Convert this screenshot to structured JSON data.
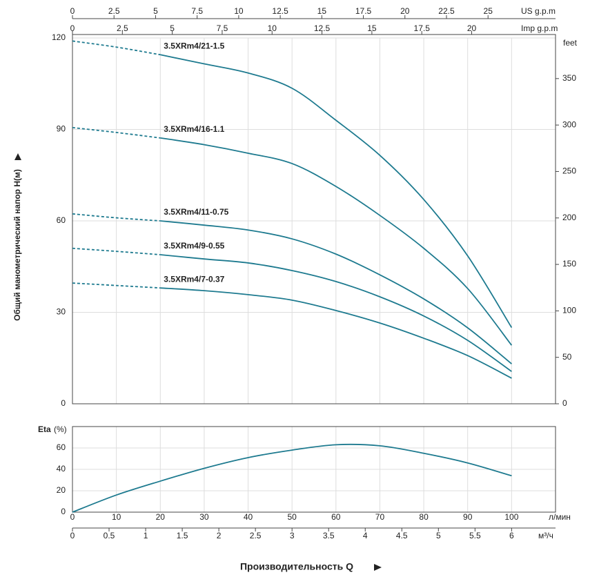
{
  "chart_data": [
    {
      "type": "line",
      "y_label": "Общий манометрический напор H(м)",
      "grid": true,
      "color": "#1d7a8f",
      "dashed_below_x": 20,
      "x": [
        0,
        10,
        20,
        30,
        40,
        50,
        60,
        70,
        80,
        90,
        100
      ],
      "xlim": [
        0,
        110
      ],
      "ylim": [
        0,
        120
      ],
      "yticks": [
        0,
        30,
        60,
        90,
        120
      ],
      "y2_label": "feet",
      "y2lim": [
        0,
        393.7
      ],
      "y2ticks": [
        0,
        50,
        100,
        150,
        200,
        250,
        300,
        350
      ],
      "top_axes": [
        {
          "label": "US g.p.m",
          "lim": [
            0,
            29.06
          ],
          "ticks": [
            0,
            2.5,
            5,
            7.5,
            10,
            12.5,
            15,
            17.5,
            20,
            22.5,
            25
          ]
        },
        {
          "label": "Imp g.p.m",
          "lim": [
            0,
            24.2
          ],
          "ticks": [
            0,
            2.5,
            5,
            7.5,
            10,
            12.5,
            15,
            17.5,
            20
          ]
        }
      ],
      "series": [
        {
          "name": "3.5XRm4/21-1.5",
          "values": [
            119,
            117,
            114.5,
            111.5,
            108.5,
            103.5,
            93,
            81.5,
            67,
            48.5,
            25
          ]
        },
        {
          "name": "3.5XRm4/16-1.1",
          "values": [
            90.6,
            89,
            87.2,
            85,
            82.2,
            78.8,
            71.3,
            61.8,
            51,
            37.8,
            19.2
          ]
        },
        {
          "name": "3.5XRm4/11-0.75",
          "values": [
            62.3,
            61,
            60,
            58.6,
            57,
            54.1,
            49.1,
            42.3,
            34.4,
            24.9,
            13.1
          ]
        },
        {
          "name": "3.5XRm4/9-0.55",
          "values": [
            51,
            50,
            48.9,
            47.5,
            46.2,
            43.7,
            40.1,
            35.1,
            28.8,
            20.8,
            10.6
          ]
        },
        {
          "name": "3.5XRm4/7-0.37",
          "values": [
            39.6,
            38.8,
            38,
            37.1,
            35.8,
            34,
            30.6,
            26.5,
            21.5,
            15.8,
            8.4
          ]
        }
      ]
    },
    {
      "type": "line",
      "y_label": "Eta",
      "y_unit": "(%)",
      "grid": true,
      "color": "#1d7a8f",
      "x": [
        0,
        10,
        20,
        30,
        40,
        50,
        60,
        70,
        80,
        90,
        100
      ],
      "xlim": [
        0,
        110
      ],
      "xticks": [
        0,
        10,
        20,
        30,
        40,
        50,
        60,
        70,
        80,
        90,
        100
      ],
      "x_unit": "л/мин",
      "ylim": [
        0,
        80
      ],
      "yticks": [
        0,
        20,
        40,
        60
      ],
      "values": [
        0,
        16,
        29,
        41,
        51,
        58,
        63,
        62,
        55,
        46,
        34
      ],
      "x2_unit": "м³/ч",
      "x2lim": [
        0,
        6.6
      ],
      "x2ticks": [
        0,
        0.5,
        1,
        1.5,
        2,
        2.5,
        3,
        3.5,
        4,
        4.5,
        5,
        5.5,
        6
      ],
      "x_label": "Производительность Q"
    }
  ]
}
